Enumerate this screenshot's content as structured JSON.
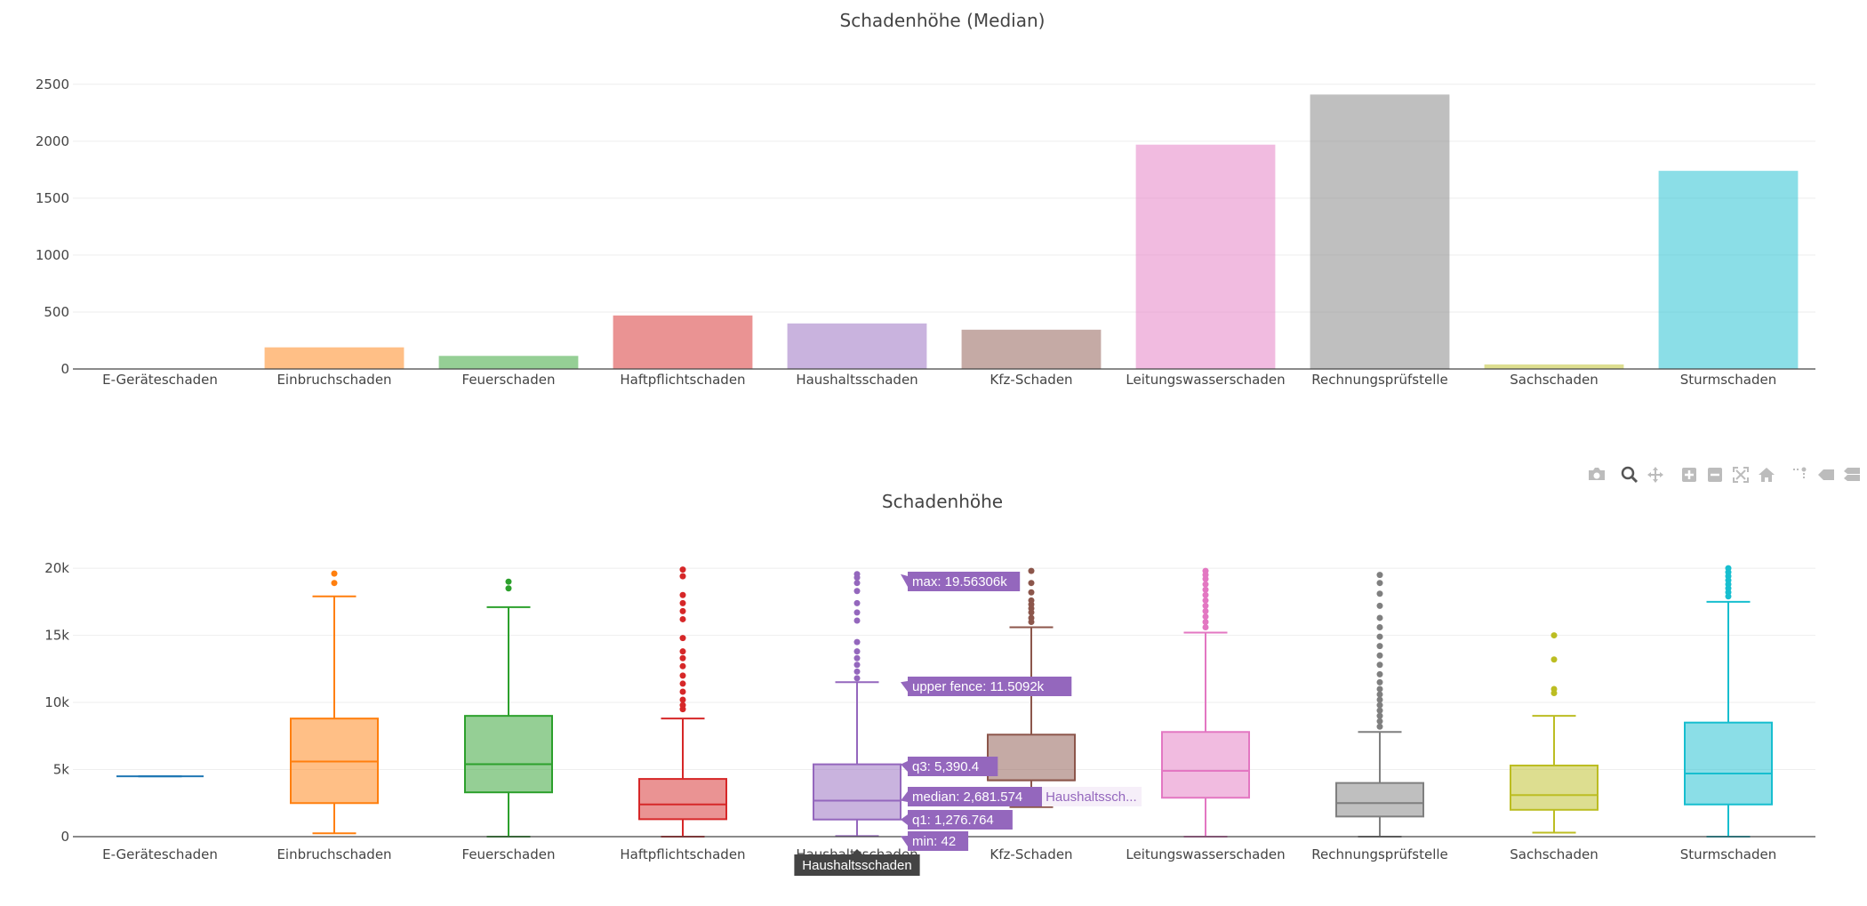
{
  "modebar": {
    "buttons": [
      "camera-icon",
      "zoom-icon",
      "pan-icon",
      "zoom-in-icon",
      "zoom-out-icon",
      "autoscale-icon",
      "reset-axes-icon",
      "spike-lines-icon",
      "hover-closest-icon",
      "hover-compare-icon"
    ]
  },
  "chart_data": [
    {
      "type": "bar",
      "title": "Schadenhöhe (Median)",
      "categories": [
        "E-Geräteschaden",
        "Einbruchschaden",
        "Feuerschaden",
        "Haftpflichtschaden",
        "Haushaltsschaden",
        "Kfz-Schaden",
        "Leitungswasserschaden",
        "Rechnungsprüfstelle",
        "Sachschaden",
        "Sturmschaden"
      ],
      "values": [
        0,
        190,
        115,
        470,
        400,
        345,
        1970,
        2410,
        40,
        1740
      ],
      "colors": [
        "#1f77b4",
        "#ff7f0e",
        "#2ca02c",
        "#d62728",
        "#9467bd",
        "#8c564b",
        "#e377c2",
        "#7f7f7f",
        "#bcbd22",
        "#17becf"
      ],
      "ylim": [
        0,
        2600
      ],
      "yticks": [
        0,
        500,
        1000,
        1500,
        2000,
        2500
      ],
      "ytick_labels": [
        "0",
        "500",
        "1000",
        "1500",
        "2000",
        "2500"
      ],
      "grid": true
    },
    {
      "type": "box",
      "title": "Schadenhöhe",
      "categories": [
        "E-Geräteschaden",
        "Einbruchschaden",
        "Feuerschaden",
        "Haftpflichtschaden",
        "Haushaltsschaden",
        "Kfz-Schaden",
        "Leitungswasserschaden",
        "Rechnungsprüfstelle",
        "Sachschaden",
        "Sturmschaden"
      ],
      "colors": [
        "#1f77b4",
        "#ff7f0e",
        "#2ca02c",
        "#d62728",
        "#9467bd",
        "#8c564b",
        "#e377c2",
        "#7f7f7f",
        "#bcbd22",
        "#17becf"
      ],
      "ylim": [
        0,
        21000
      ],
      "yticks": [
        0,
        5000,
        10000,
        15000,
        20000
      ],
      "ytick_labels": [
        "0",
        "5k",
        "10k",
        "15k",
        "20k"
      ],
      "grid": true,
      "boxes": [
        {
          "min": 4500,
          "q1": 4500,
          "median": 4500,
          "q3": 4500,
          "upper_fence": 4500,
          "outliers": []
        },
        {
          "min": 250,
          "q1": 2500,
          "median": 5600,
          "q3": 8800,
          "upper_fence": 17900,
          "outliers": [
            18900,
            19600
          ]
        },
        {
          "min": 0,
          "q1": 3300,
          "median": 5400,
          "q3": 9000,
          "upper_fence": 17100,
          "outliers": [
            18500,
            19000
          ]
        },
        {
          "min": 0,
          "q1": 1300,
          "median": 2400,
          "q3": 4300,
          "upper_fence": 8800,
          "outliers": [
            9500,
            9800,
            10200,
            10800,
            11400,
            12000,
            12700,
            13300,
            13800,
            14800,
            16200,
            16800,
            17400,
            18000,
            19400,
            19900
          ]
        },
        {
          "min": 42,
          "q1": 1276.764,
          "median": 2681.574,
          "q3": 5390.4,
          "upper_fence": 11509.2,
          "outliers": [
            11800,
            12300,
            12800,
            13300,
            13800,
            14500,
            16100,
            16700,
            17400,
            18300,
            18900,
            19300,
            19563
          ]
        },
        {
          "min": 2200,
          "q1": 4200,
          "median": 4200,
          "q3": 7600,
          "upper_fence": 15600,
          "outliers": [
            16000,
            16300,
            16700,
            17000,
            17300,
            17600,
            18200,
            18900,
            19800
          ]
        },
        {
          "min": 0,
          "q1": 2900,
          "median": 4900,
          "q3": 7800,
          "upper_fence": 15200,
          "outliers": [
            15600,
            16000,
            16400,
            16800,
            17200,
            17600,
            18000,
            18400,
            18800,
            19200,
            19500,
            19800
          ]
        },
        {
          "min": 0,
          "q1": 1500,
          "median": 2500,
          "q3": 4000,
          "upper_fence": 7800,
          "outliers": [
            8200,
            8600,
            9000,
            9400,
            9800,
            10200,
            10600,
            11000,
            11500,
            12100,
            12800,
            13500,
            14200,
            14900,
            15600,
            16300,
            17200,
            18100,
            18900,
            19500
          ]
        },
        {
          "min": 300,
          "q1": 2000,
          "median": 3100,
          "q3": 5300,
          "upper_fence": 9000,
          "outliers": [
            10700,
            11000,
            13200,
            15000
          ]
        },
        {
          "min": 0,
          "q1": 2400,
          "median": 4700,
          "q3": 8500,
          "upper_fence": 17500,
          "outliers": [
            17900,
            18200,
            18500,
            18800,
            19100,
            19400,
            19700,
            20000
          ]
        }
      ],
      "hover": {
        "category": "Haushaltsschaden",
        "labels": [
          "max: 19.56306k",
          "upper fence: 11.5092k",
          "q3: 5,390.4",
          "median: 2,681.574",
          "q1: 1,276.764",
          "min: 42"
        ],
        "trace_name": "Haushaltssch...",
        "axis_label": "Haushaltsschaden"
      }
    }
  ]
}
